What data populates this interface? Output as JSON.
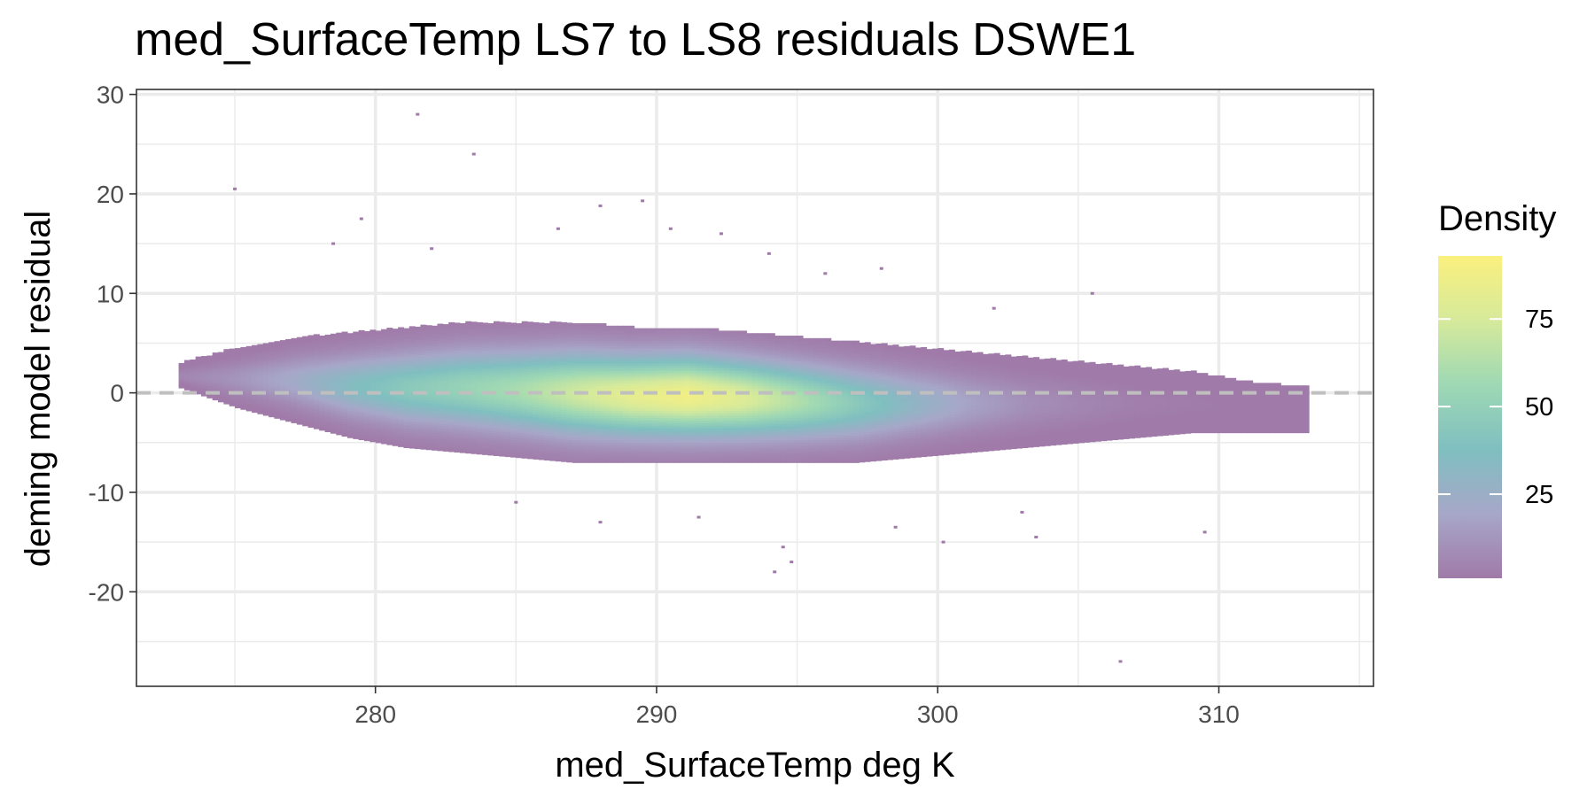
{
  "chart_data": {
    "type": "heatmap",
    "title": "med_SurfaceTemp LS7 to LS8 residuals DSWE1",
    "xlabel": "med_SurfaceTemp deg K",
    "ylabel": "deming model residual",
    "xlim": [
      271.5,
      315.5
    ],
    "ylim": [
      -29.5,
      30.5
    ],
    "x_ticks": [
      280,
      290,
      300,
      310
    ],
    "x_tick_labels": [
      "280",
      "290",
      "300",
      "310"
    ],
    "y_ticks": [
      30,
      20,
      10,
      0,
      -10,
      -20
    ],
    "y_tick_labels": [
      "30",
      "20",
      "10",
      "0",
      "-10",
      "-20"
    ],
    "grid": true,
    "reference_line": {
      "y": 0,
      "style": "dashed",
      "color": "#bfbfbf"
    },
    "legend": {
      "title": "Density",
      "placement": "right",
      "range": [
        1,
        93
      ],
      "ticks": [
        75,
        50,
        25
      ],
      "tick_labels": [
        "75",
        "50",
        "25"
      ],
      "colors": [
        "#a07aa8",
        "#a7a7c8",
        "#7fbfc0",
        "#9ed8b4",
        "#d6ea9b",
        "#fbf07e"
      ]
    },
    "density_envelope": [
      {
        "x": 273.0,
        "y_low": 0.5,
        "y_high": 3.0,
        "peak": 6
      },
      {
        "x": 275.0,
        "y_low": -1.5,
        "y_high": 4.5,
        "peak": 12
      },
      {
        "x": 277.0,
        "y_low": -3.0,
        "y_high": 5.5,
        "peak": 22
      },
      {
        "x": 279.0,
        "y_low": -4.5,
        "y_high": 6.0,
        "peak": 35
      },
      {
        "x": 281.0,
        "y_low": -5.5,
        "y_high": 6.5,
        "peak": 45
      },
      {
        "x": 283.0,
        "y_low": -6.0,
        "y_high": 7.0,
        "peak": 52
      },
      {
        "x": 285.0,
        "y_low": -6.5,
        "y_high": 7.0,
        "peak": 60
      },
      {
        "x": 287.0,
        "y_low": -7.0,
        "y_high": 7.0,
        "peak": 72
      },
      {
        "x": 289.0,
        "y_low": -7.0,
        "y_high": 6.5,
        "peak": 82
      },
      {
        "x": 291.0,
        "y_low": -7.0,
        "y_high": 6.5,
        "peak": 88
      },
      {
        "x": 293.0,
        "y_low": -7.0,
        "y_high": 6.0,
        "peak": 78
      },
      {
        "x": 295.0,
        "y_low": -7.0,
        "y_high": 5.5,
        "peak": 62
      },
      {
        "x": 297.0,
        "y_low": -7.0,
        "y_high": 5.0,
        "peak": 45
      },
      {
        "x": 299.0,
        "y_low": -6.5,
        "y_high": 4.5,
        "peak": 30
      },
      {
        "x": 301.0,
        "y_low": -6.0,
        "y_high": 4.0,
        "peak": 18
      },
      {
        "x": 303.0,
        "y_low": -5.5,
        "y_high": 3.5,
        "peak": 10
      },
      {
        "x": 305.0,
        "y_low": -5.0,
        "y_high": 3.0,
        "peak": 6
      },
      {
        "x": 307.0,
        "y_low": -4.5,
        "y_high": 2.5,
        "peak": 3
      },
      {
        "x": 309.0,
        "y_low": -4.0,
        "y_high": 2.0,
        "peak": 2
      },
      {
        "x": 311.0,
        "y_low": -4.0,
        "y_high": 1.0,
        "peak": 1
      },
      {
        "x": 313.0,
        "y_low": -4.0,
        "y_high": 0.5,
        "peak": 1
      }
    ],
    "outliers": [
      {
        "x": 281.5,
        "y": 28.0
      },
      {
        "x": 283.5,
        "y": 24.0
      },
      {
        "x": 275.0,
        "y": 20.5
      },
      {
        "x": 279.5,
        "y": 17.5
      },
      {
        "x": 289.5,
        "y": 19.3
      },
      {
        "x": 288.0,
        "y": 18.8
      },
      {
        "x": 290.5,
        "y": 16.5
      },
      {
        "x": 292.3,
        "y": 16.0
      },
      {
        "x": 286.5,
        "y": 16.5
      },
      {
        "x": 294.0,
        "y": 14.0
      },
      {
        "x": 296.0,
        "y": 12.0
      },
      {
        "x": 298.0,
        "y": 12.5
      },
      {
        "x": 278.5,
        "y": 15.0
      },
      {
        "x": 282.0,
        "y": 14.5
      },
      {
        "x": 294.5,
        "y": -15.5
      },
      {
        "x": 294.8,
        "y": -17.0
      },
      {
        "x": 294.2,
        "y": -18.0
      },
      {
        "x": 300.2,
        "y": -15.0
      },
      {
        "x": 306.5,
        "y": -27.0
      },
      {
        "x": 309.5,
        "y": -14.0
      },
      {
        "x": 303.5,
        "y": -14.5
      },
      {
        "x": 288.0,
        "y": -13.0
      },
      {
        "x": 302.0,
        "y": 8.5
      },
      {
        "x": 305.5,
        "y": 10.0
      },
      {
        "x": 298.5,
        "y": -13.5
      },
      {
        "x": 291.5,
        "y": -12.5
      },
      {
        "x": 285.0,
        "y": -11.0
      },
      {
        "x": 303.0,
        "y": -12.0
      }
    ]
  }
}
